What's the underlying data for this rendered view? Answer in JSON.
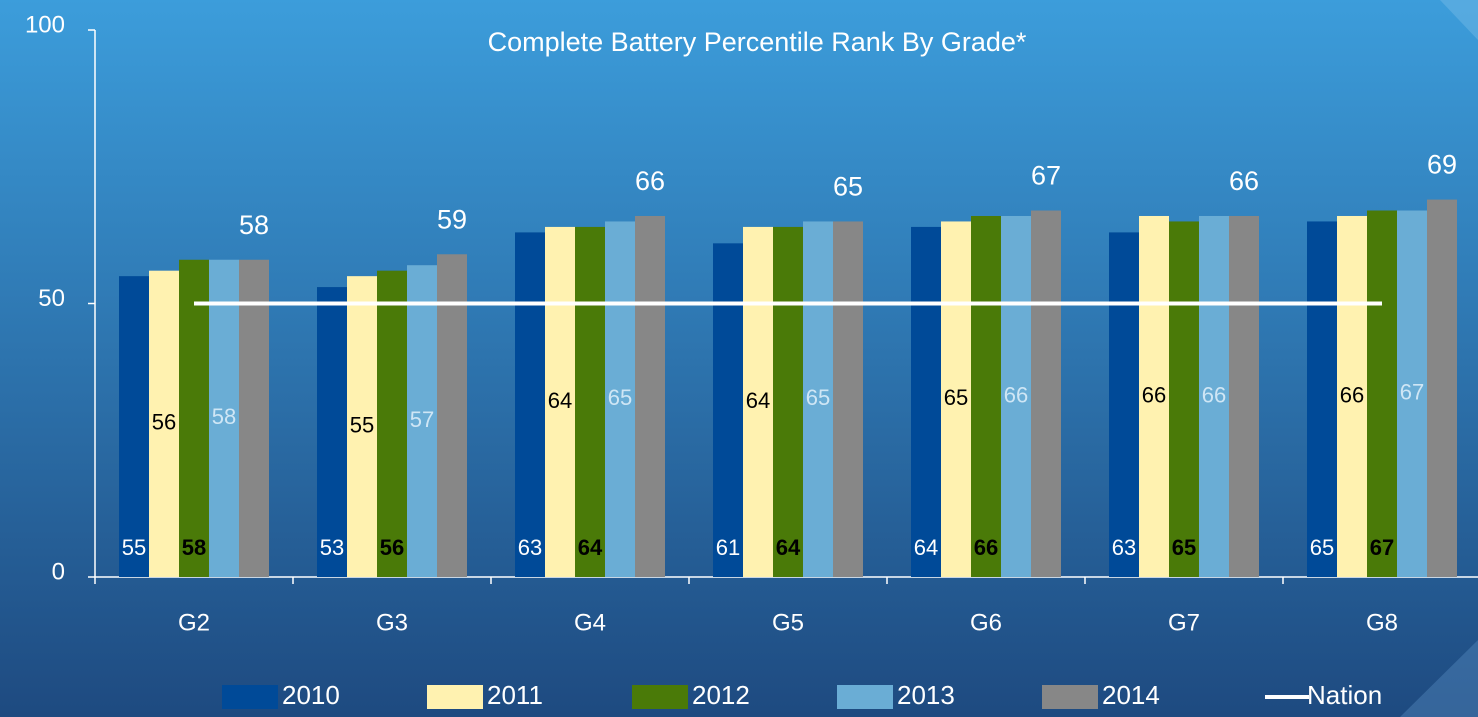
{
  "chart_data": {
    "type": "bar",
    "title": "Complete Battery Percentile Rank By Grade*",
    "categories": [
      "G2",
      "G3",
      "G4",
      "G5",
      "G6",
      "G7",
      "G8"
    ],
    "series": [
      {
        "name": "2010",
        "color": "#004a98",
        "values": [
          55,
          53,
          63,
          61,
          64,
          63,
          65
        ]
      },
      {
        "name": "2011",
        "color": "#fff2b0",
        "values": [
          56,
          55,
          64,
          64,
          65,
          66,
          66
        ]
      },
      {
        "name": "2012",
        "color": "#4a7a08",
        "values": [
          58,
          56,
          64,
          64,
          66,
          65,
          67
        ]
      },
      {
        "name": "2013",
        "color": "#6aadd5",
        "values": [
          58,
          57,
          65,
          65,
          66,
          66,
          67
        ]
      },
      {
        "name": "2014",
        "color": "#878787",
        "values": [
          58,
          59,
          66,
          65,
          67,
          66,
          69
        ]
      },
      {
        "name": "Nation",
        "type": "line",
        "color": "#ffffff",
        "values": [
          50,
          50,
          50,
          50,
          50,
          50,
          50
        ]
      }
    ],
    "ylim": [
      0,
      100
    ],
    "yticks": [
      0,
      50,
      100
    ]
  }
}
